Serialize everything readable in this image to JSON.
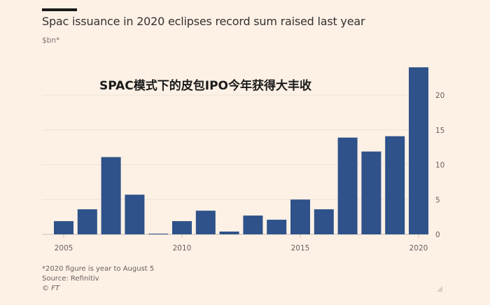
{
  "header": {
    "title": "Spac issuance in 2020 eclipses record sum raised last year",
    "subtitle": "$bn*"
  },
  "overlay_text": "SPAC模式下的皮包IPO今年获得大丰收",
  "footer": {
    "note": "*2020 figure is year to August 5",
    "source": "Source: Refinitiv",
    "credit": "© FT"
  },
  "colors": {
    "bar": "#2e5289",
    "background": "#fdf1e6",
    "grid": "#ede2d7"
  },
  "chart_data": {
    "type": "bar",
    "title": "Spac issuance in 2020 eclipses record sum raised last year",
    "ylabel": "$bn*",
    "xlabel": "",
    "categories": [
      "2005",
      "2006",
      "2007",
      "2008",
      "2009",
      "2010",
      "2011",
      "2012",
      "2013",
      "2014",
      "2015",
      "2016",
      "2017",
      "2018",
      "2019",
      "2020"
    ],
    "values": [
      1.9,
      3.6,
      11.1,
      5.7,
      0.1,
      1.9,
      3.4,
      0.4,
      2.7,
      2.1,
      5.0,
      3.6,
      13.9,
      11.9,
      14.1,
      24.0
    ],
    "ylim": [
      0,
      24
    ],
    "yticks": [
      0,
      5,
      10,
      15,
      20
    ],
    "xtick_labels": [
      "2005",
      "2010",
      "2015",
      "2020"
    ],
    "y_axis_side": "right",
    "grid": true
  }
}
